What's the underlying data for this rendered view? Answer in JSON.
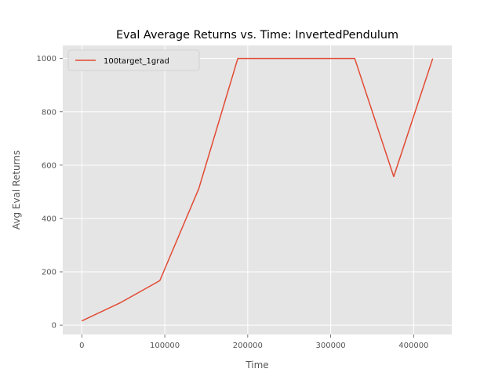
{
  "chart_data": {
    "type": "line",
    "title": "Eval Average Returns vs. Time: InvertedPendulum",
    "xlabel": "Time",
    "ylabel": "Avg Eval Returns",
    "xlim": [
      -23000,
      446000
    ],
    "ylim": [
      -35,
      1049
    ],
    "xticks": [
      0,
      100000,
      200000,
      300000,
      400000
    ],
    "xtick_labels": [
      "0",
      "100000",
      "200000",
      "300000",
      "400000"
    ],
    "yticks": [
      0,
      200,
      400,
      600,
      800,
      1000
    ],
    "ytick_labels": [
      "0",
      "200",
      "400",
      "600",
      "800",
      "1000"
    ],
    "grid": true,
    "legend_position": "upper-left",
    "series": [
      {
        "name": "100target_1grad",
        "color": "#E24A33",
        "x": [
          0,
          47000,
          94000,
          141000,
          188000,
          235000,
          282000,
          329000,
          376000,
          423000
        ],
        "y": [
          16,
          85,
          167,
          512,
          1000,
          1000,
          1000,
          1000,
          557,
          1000
        ]
      }
    ]
  }
}
